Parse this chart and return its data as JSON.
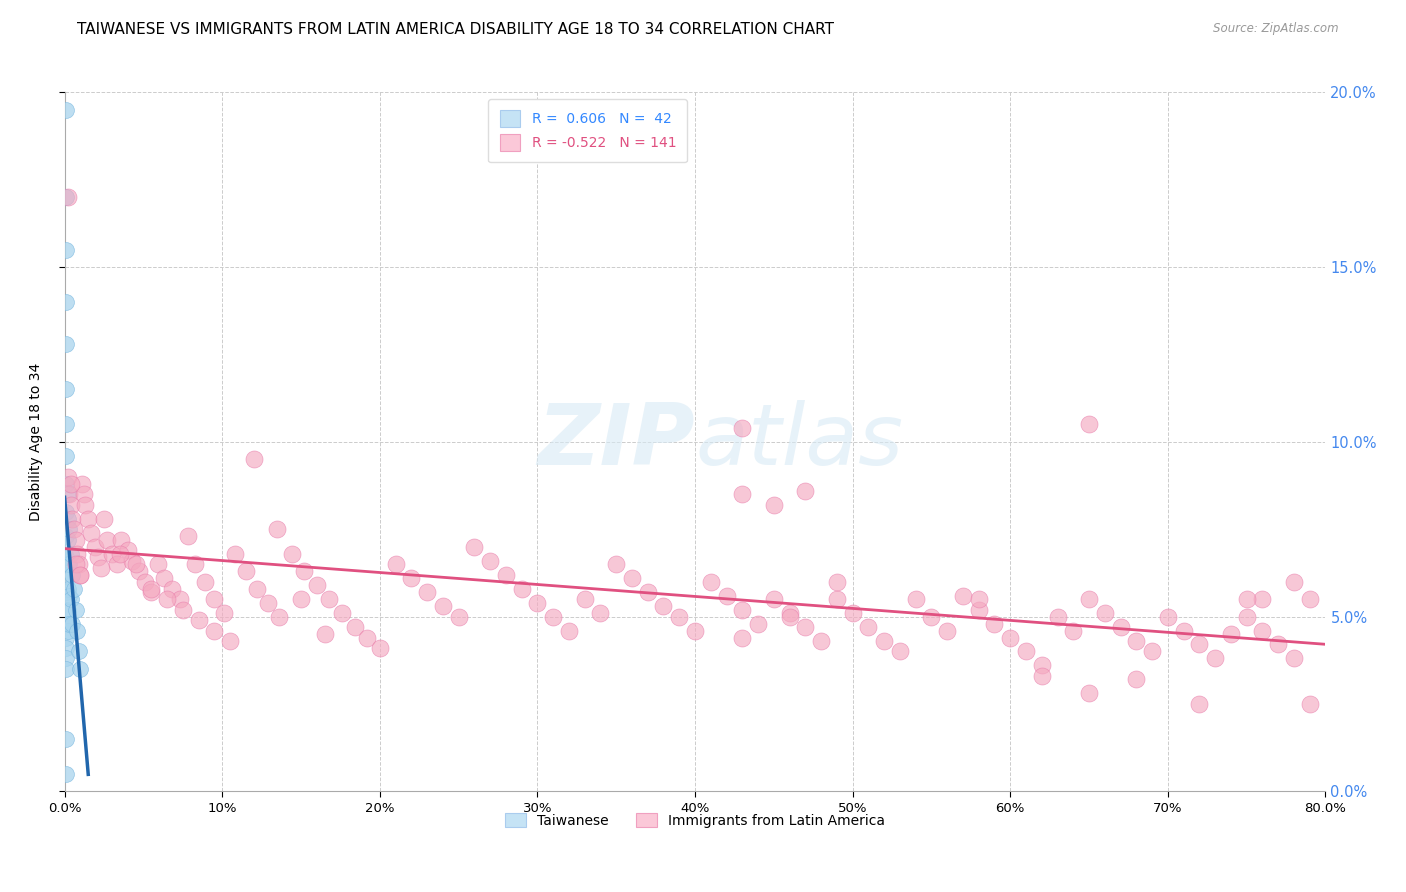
{
  "title": "TAIWANESE VS IMMIGRANTS FROM LATIN AMERICA DISABILITY AGE 18 TO 34 CORRELATION CHART",
  "source": "Source: ZipAtlas.com",
  "ylabel": "Disability Age 18 to 34",
  "xlim": [
    0.0,
    0.8
  ],
  "ylim": [
    0.0,
    0.2
  ],
  "xtick_vals": [
    0.0,
    0.1,
    0.2,
    0.3,
    0.4,
    0.5,
    0.6,
    0.7,
    0.8
  ],
  "ytick_vals": [
    0.0,
    0.05,
    0.1,
    0.15,
    0.2
  ],
  "taiwanese_color": "#a8d4ed",
  "taiwanese_edge": "#7ab8e0",
  "taiwanese_line_color": "#2166ac",
  "latin_color": "#f4a9c0",
  "latin_edge": "#e87aaa",
  "latin_line_color": "#e05080",
  "taiwanese_R": 0.606,
  "taiwanese_N": 42,
  "latin_R": -0.522,
  "latin_N": 141,
  "taiwanese_label": "Taiwanese",
  "latin_label": "Immigrants from Latin America",
  "watermark_zip": "ZIP",
  "watermark_atlas": "atlas",
  "bg_color": "#ffffff",
  "grid_color": "#cccccc",
  "title_fontsize": 11,
  "ylabel_fontsize": 10,
  "tick_fontsize": 9.5,
  "legend_fontsize": 10,
  "right_tick_color": "#4488ee",
  "legend_blue_color": "#3388ff",
  "legend_pink_color": "#e05080",
  "tw_x": [
    0.001,
    0.001,
    0.001,
    0.001,
    0.001,
    0.001,
    0.001,
    0.001,
    0.001,
    0.001,
    0.001,
    0.001,
    0.001,
    0.001,
    0.001,
    0.001,
    0.001,
    0.001,
    0.001,
    0.001,
    0.002,
    0.002,
    0.002,
    0.002,
    0.002,
    0.002,
    0.002,
    0.003,
    0.003,
    0.003,
    0.003,
    0.004,
    0.004,
    0.005,
    0.005,
    0.006,
    0.007,
    0.008,
    0.009,
    0.01,
    0.001,
    0.001
  ],
  "tw_y": [
    0.195,
    0.17,
    0.155,
    0.14,
    0.128,
    0.115,
    0.105,
    0.096,
    0.088,
    0.08,
    0.073,
    0.067,
    0.062,
    0.057,
    0.052,
    0.048,
    0.044,
    0.041,
    0.038,
    0.035,
    0.085,
    0.078,
    0.072,
    0.065,
    0.058,
    0.052,
    0.046,
    0.075,
    0.065,
    0.056,
    0.048,
    0.068,
    0.055,
    0.062,
    0.048,
    0.058,
    0.052,
    0.046,
    0.04,
    0.035,
    0.015,
    0.005
  ],
  "la_x": [
    0.002,
    0.003,
    0.004,
    0.005,
    0.006,
    0.007,
    0.008,
    0.009,
    0.01,
    0.011,
    0.012,
    0.013,
    0.015,
    0.017,
    0.019,
    0.021,
    0.023,
    0.025,
    0.027,
    0.03,
    0.033,
    0.036,
    0.04,
    0.043,
    0.047,
    0.051,
    0.055,
    0.059,
    0.063,
    0.068,
    0.073,
    0.078,
    0.083,
    0.089,
    0.095,
    0.101,
    0.108,
    0.115,
    0.122,
    0.129,
    0.136,
    0.144,
    0.152,
    0.16,
    0.168,
    0.176,
    0.184,
    0.192,
    0.2,
    0.21,
    0.22,
    0.23,
    0.24,
    0.25,
    0.26,
    0.27,
    0.28,
    0.29,
    0.3,
    0.31,
    0.32,
    0.33,
    0.34,
    0.35,
    0.36,
    0.37,
    0.38,
    0.39,
    0.4,
    0.41,
    0.42,
    0.43,
    0.44,
    0.45,
    0.46,
    0.47,
    0.48,
    0.49,
    0.5,
    0.51,
    0.52,
    0.53,
    0.54,
    0.55,
    0.56,
    0.57,
    0.58,
    0.59,
    0.6,
    0.61,
    0.62,
    0.63,
    0.64,
    0.65,
    0.66,
    0.67,
    0.68,
    0.69,
    0.7,
    0.71,
    0.72,
    0.73,
    0.74,
    0.75,
    0.76,
    0.77,
    0.78,
    0.79,
    0.035,
    0.045,
    0.055,
    0.065,
    0.075,
    0.085,
    0.095,
    0.105,
    0.12,
    0.135,
    0.15,
    0.165,
    0.43,
    0.45,
    0.47,
    0.49,
    0.62,
    0.65,
    0.68,
    0.72,
    0.76,
    0.79,
    0.43,
    0.46,
    0.002,
    0.004,
    0.007,
    0.01,
    0.43,
    0.58,
    0.65,
    0.75,
    0.78
  ],
  "la_y": [
    0.09,
    0.085,
    0.082,
    0.078,
    0.075,
    0.072,
    0.068,
    0.065,
    0.062,
    0.088,
    0.085,
    0.082,
    0.078,
    0.074,
    0.07,
    0.067,
    0.064,
    0.078,
    0.072,
    0.068,
    0.065,
    0.072,
    0.069,
    0.066,
    0.063,
    0.06,
    0.057,
    0.065,
    0.061,
    0.058,
    0.055,
    0.073,
    0.065,
    0.06,
    0.055,
    0.051,
    0.068,
    0.063,
    0.058,
    0.054,
    0.05,
    0.068,
    0.063,
    0.059,
    0.055,
    0.051,
    0.047,
    0.044,
    0.041,
    0.065,
    0.061,
    0.057,
    0.053,
    0.05,
    0.07,
    0.066,
    0.062,
    0.058,
    0.054,
    0.05,
    0.046,
    0.055,
    0.051,
    0.065,
    0.061,
    0.057,
    0.053,
    0.05,
    0.046,
    0.06,
    0.056,
    0.052,
    0.048,
    0.055,
    0.051,
    0.047,
    0.043,
    0.055,
    0.051,
    0.047,
    0.043,
    0.04,
    0.055,
    0.05,
    0.046,
    0.056,
    0.052,
    0.048,
    0.044,
    0.04,
    0.036,
    0.05,
    0.046,
    0.055,
    0.051,
    0.047,
    0.043,
    0.04,
    0.05,
    0.046,
    0.042,
    0.038,
    0.045,
    0.05,
    0.046,
    0.042,
    0.038,
    0.055,
    0.068,
    0.065,
    0.058,
    0.055,
    0.052,
    0.049,
    0.046,
    0.043,
    0.095,
    0.075,
    0.055,
    0.045,
    0.085,
    0.082,
    0.086,
    0.06,
    0.033,
    0.028,
    0.032,
    0.025,
    0.055,
    0.025,
    0.044,
    0.05,
    0.17,
    0.088,
    0.065,
    0.062,
    0.104,
    0.055,
    0.105,
    0.055,
    0.06
  ]
}
